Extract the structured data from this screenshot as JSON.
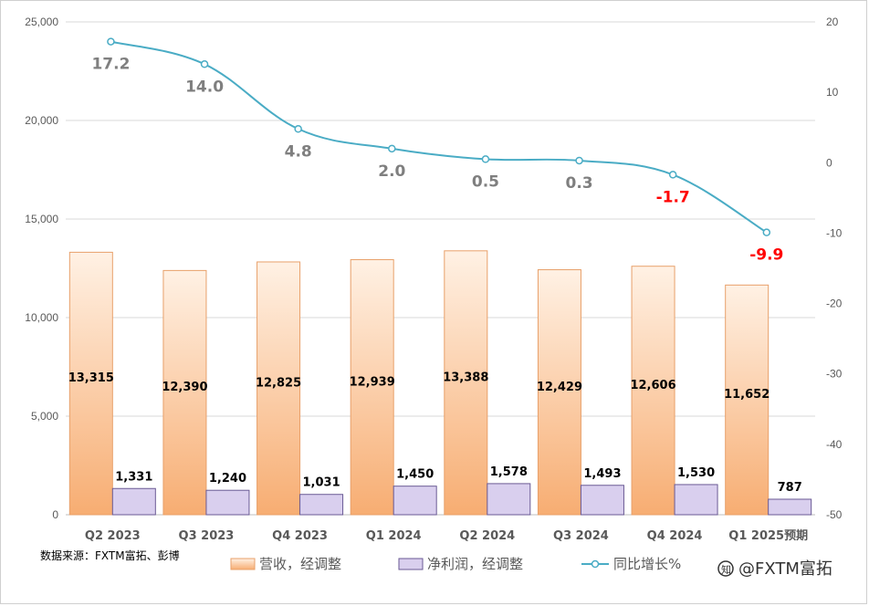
{
  "chart_data": {
    "type": "bar",
    "categories": [
      "Q2 2023",
      "Q3 2023",
      "Q4 2023",
      "Q1 2024",
      "Q2 2024",
      "Q3 2024",
      "Q4 2024",
      "Q1 2025预期"
    ],
    "series": [
      {
        "name": "营收，经调整",
        "type": "bar",
        "axis": "left",
        "values": [
          13315,
          12390,
          12825,
          12939,
          13388,
          12429,
          12606,
          11652
        ],
        "labels": [
          "13,315",
          "12,390",
          "12,825",
          "12,939",
          "13,388",
          "12,429",
          "12,606",
          "11,652"
        ]
      },
      {
        "name": "净利润，经调整",
        "type": "bar",
        "axis": "left",
        "values": [
          1331,
          1240,
          1031,
          1450,
          1578,
          1493,
          1530,
          787
        ],
        "labels": [
          "1,331",
          "1,240",
          "1,031",
          "1,450",
          "1,578",
          "1,493",
          "1,530",
          "787"
        ]
      },
      {
        "name": "同比增长%",
        "type": "line",
        "axis": "right",
        "values": [
          17.2,
          14.0,
          4.8,
          2.0,
          0.5,
          0.3,
          -1.7,
          -9.9
        ],
        "labels": [
          "17.2",
          "14.0",
          "4.8",
          "2.0",
          "0.5",
          "0.3",
          "-1.7",
          "-9.9"
        ]
      }
    ],
    "left_axis": {
      "ylim": [
        0,
        25000
      ],
      "ticks": [
        0,
        5000,
        10000,
        15000,
        20000,
        25000
      ],
      "tick_labels": [
        "0",
        "5,000",
        "10,000",
        "15,000",
        "20,000",
        "25,000"
      ]
    },
    "right_axis": {
      "ylim": [
        -50,
        20
      ],
      "ticks": [
        -50,
        -40,
        -30,
        -20,
        -10,
        0,
        10,
        20
      ],
      "tick_labels": [
        "-50",
        "-40",
        "-30",
        "-20",
        "-10",
        "0",
        "10",
        "20"
      ]
    },
    "grid": true,
    "legend_position": "bottom",
    "colors": {
      "revenue_fill_top": "#fde3cc",
      "revenue_fill_bottom": "#f9b27a",
      "revenue_edge": "#e8a06a",
      "profit_fill": "#d9cfee",
      "profit_edge": "#6a5a94",
      "line": "#4aacc5",
      "positive_label": "#7f7f7f",
      "negative_label": "#ff0000"
    }
  },
  "source_note": "数据来源：FXTM富拓、彭博",
  "watermark": "@FXTM富拓"
}
